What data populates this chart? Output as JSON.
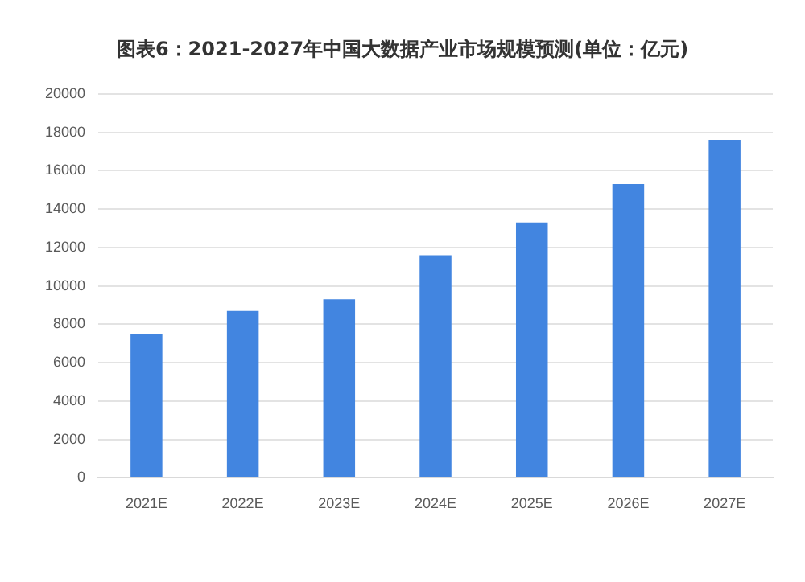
{
  "chart_data": {
    "type": "bar",
    "title": "图表6：2021-2027年中国大数据产业市场规模预测(单位：亿元)",
    "categories": [
      "2021E",
      "2022E",
      "2023E",
      "2024E",
      "2025E",
      "2026E",
      "2027E"
    ],
    "values": [
      7500,
      8700,
      9300,
      11600,
      13300,
      15300,
      17600
    ],
    "color": "#4285e0",
    "ylim": [
      0,
      20000
    ],
    "yticks": [
      0,
      2000,
      4000,
      6000,
      8000,
      10000,
      12000,
      14000,
      16000,
      18000,
      20000
    ],
    "grid": "y"
  }
}
